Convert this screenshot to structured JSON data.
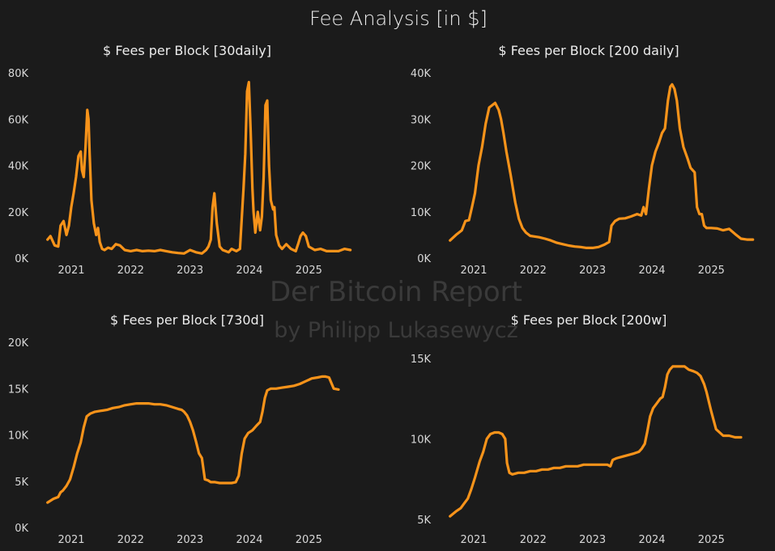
{
  "figure": {
    "title": "Fee Analysis [in $]",
    "watermark_line1": "Der Bitcoin Report",
    "watermark_line2": "by Philipp Lukasewycz",
    "line_color": "#f7931a",
    "background_color": "#1b1b1b"
  },
  "chart_data": [
    {
      "type": "line",
      "title": "$ Fees per Block [30daily]",
      "xlabel": "",
      "ylabel": "",
      "xlim": [
        2020.55,
        2025.8
      ],
      "ylim": [
        0,
        80000
      ],
      "grid": false,
      "yticks": [
        0,
        20000,
        40000,
        60000,
        80000
      ],
      "ytick_labels": [
        "0K",
        "20K",
        "40K",
        "60K",
        "80K"
      ],
      "xticks": [
        2021,
        2022,
        2023,
        2024,
        2025
      ],
      "xtick_labels": [
        "2021",
        "2022",
        "2023",
        "2024",
        "2025"
      ],
      "series": [
        {
          "color": "#f7931a",
          "x": [
            2020.6,
            2020.65,
            2020.72,
            2020.78,
            2020.82,
            2020.87,
            2020.92,
            2020.96,
            2021.0,
            2021.04,
            2021.08,
            2021.12,
            2021.16,
            2021.18,
            2021.21,
            2021.24,
            2021.27,
            2021.29,
            2021.31,
            2021.34,
            2021.38,
            2021.42,
            2021.45,
            2021.48,
            2021.52,
            2021.56,
            2021.62,
            2021.68,
            2021.75,
            2021.82,
            2021.9,
            2022.0,
            2022.1,
            2022.2,
            2022.3,
            2022.4,
            2022.5,
            2022.6,
            2022.7,
            2022.8,
            2022.9,
            2023.0,
            2023.1,
            2023.2,
            2023.27,
            2023.31,
            2023.35,
            2023.38,
            2023.41,
            2023.45,
            2023.5,
            2023.55,
            2023.6,
            2023.65,
            2023.7,
            2023.78,
            2023.84,
            2023.9,
            2023.93,
            2023.96,
            2023.99,
            2024.02,
            2024.05,
            2024.07,
            2024.1,
            2024.14,
            2024.18,
            2024.21,
            2024.24,
            2024.27,
            2024.3,
            2024.33,
            2024.36,
            2024.4,
            2024.42,
            2024.45,
            2024.5,
            2024.55,
            2024.62,
            2024.7,
            2024.78,
            2024.82,
            2024.86,
            2024.9,
            2024.95,
            2025.0,
            2025.1,
            2025.2,
            2025.3,
            2025.4,
            2025.5,
            2025.6,
            2025.7
          ],
          "values": [
            8000,
            9500,
            5500,
            5000,
            14000,
            16000,
            10000,
            14000,
            22000,
            28000,
            35000,
            44000,
            46000,
            38000,
            35000,
            48000,
            64000,
            60000,
            45000,
            25000,
            15000,
            10000,
            13000,
            7000,
            4000,
            3500,
            4500,
            4000,
            6000,
            5500,
            3500,
            3000,
            3500,
            3000,
            3200,
            3000,
            3500,
            3000,
            2500,
            2200,
            2000,
            3500,
            2500,
            2000,
            3500,
            5000,
            8000,
            22000,
            28000,
            15000,
            5000,
            3500,
            3000,
            2500,
            4000,
            3000,
            4000,
            30000,
            45000,
            72000,
            76000,
            55000,
            30000,
            20000,
            11000,
            20000,
            12000,
            18000,
            35000,
            66000,
            68000,
            40000,
            25000,
            21000,
            22000,
            10000,
            5500,
            4000,
            6000,
            4000,
            3000,
            6000,
            9500,
            11000,
            9500,
            5000,
            3500,
            4000,
            3000,
            3000,
            3000,
            4000,
            3500
          ]
        }
      ]
    },
    {
      "type": "line",
      "title": "$ Fees per Block [200 daily]",
      "xlabel": "",
      "ylabel": "",
      "xlim": [
        2020.55,
        2025.8
      ],
      "ylim": [
        0,
        40000
      ],
      "grid": false,
      "yticks": [
        0,
        10000,
        20000,
        30000,
        40000
      ],
      "ytick_labels": [
        "0K",
        "10K",
        "20K",
        "30K",
        "40K"
      ],
      "xticks": [
        2021,
        2022,
        2023,
        2024,
        2025
      ],
      "xtick_labels": [
        "2021",
        "2022",
        "2023",
        "2024",
        "2025"
      ],
      "series": [
        {
          "color": "#f7931a",
          "x": [
            2020.6,
            2020.7,
            2020.8,
            2020.86,
            2020.92,
            2020.97,
            2021.02,
            2021.08,
            2021.14,
            2021.2,
            2021.26,
            2021.31,
            2021.36,
            2021.42,
            2021.46,
            2021.5,
            2021.55,
            2021.62,
            2021.7,
            2021.76,
            2021.82,
            2021.88,
            2021.95,
            2022.0,
            2022.1,
            2022.2,
            2022.3,
            2022.4,
            2022.5,
            2022.6,
            2022.7,
            2022.8,
            2022.9,
            2023.0,
            2023.1,
            2023.2,
            2023.28,
            2023.32,
            2023.38,
            2023.45,
            2023.55,
            2023.65,
            2023.75,
            2023.82,
            2023.86,
            2023.9,
            2023.95,
            2024.0,
            2024.06,
            2024.12,
            2024.17,
            2024.22,
            2024.27,
            2024.31,
            2024.34,
            2024.38,
            2024.42,
            2024.47,
            2024.53,
            2024.6,
            2024.65,
            2024.72,
            2024.76,
            2024.8,
            2024.84,
            2024.88,
            2024.92,
            2025.0,
            2025.1,
            2025.2,
            2025.3,
            2025.4,
            2025.5,
            2025.6,
            2025.7
          ],
          "values": [
            3800,
            5000,
            6000,
            8000,
            8200,
            11000,
            14000,
            20000,
            24000,
            29000,
            32500,
            33000,
            33500,
            32000,
            30000,
            27000,
            23000,
            18000,
            12000,
            8500,
            6500,
            5500,
            4800,
            4700,
            4500,
            4200,
            3800,
            3300,
            3000,
            2700,
            2500,
            2400,
            2200,
            2200,
            2400,
            2900,
            3500,
            7000,
            8000,
            8500,
            8600,
            9000,
            9500,
            9200,
            11000,
            9500,
            15000,
            20000,
            23000,
            25000,
            27000,
            28000,
            34000,
            37000,
            37500,
            36500,
            34000,
            28000,
            24000,
            21500,
            19500,
            18500,
            11000,
            9500,
            9500,
            7000,
            6500,
            6500,
            6400,
            6000,
            6300,
            5200,
            4200,
            4000,
            4000
          ]
        }
      ]
    },
    {
      "type": "line",
      "title": "$ Fees per Block [730d]",
      "xlabel": "",
      "ylabel": "",
      "xlim": [
        2020.55,
        2025.8
      ],
      "ylim": [
        0,
        20000
      ],
      "grid": false,
      "yticks": [
        0,
        5000,
        10000,
        15000,
        20000
      ],
      "ytick_labels": [
        "0K",
        "5K",
        "10K",
        "15K",
        "20K"
      ],
      "xticks": [
        2021,
        2022,
        2023,
        2024,
        2025
      ],
      "xtick_labels": [
        "2021",
        "2022",
        "2023",
        "2024",
        "2025"
      ],
      "series": [
        {
          "color": "#f7931a",
          "x": [
            2020.6,
            2020.7,
            2020.78,
            2020.82,
            2020.86,
            2020.92,
            2020.98,
            2021.04,
            2021.1,
            2021.16,
            2021.21,
            2021.26,
            2021.32,
            2021.4,
            2021.5,
            2021.6,
            2021.7,
            2021.8,
            2021.9,
            2022.0,
            2022.1,
            2022.2,
            2022.3,
            2022.4,
            2022.5,
            2022.6,
            2022.7,
            2022.8,
            2022.86,
            2022.9,
            2022.95,
            2023.0,
            2023.05,
            2023.1,
            2023.15,
            2023.2,
            2023.25,
            2023.3,
            2023.35,
            2023.42,
            2023.5,
            2023.6,
            2023.7,
            2023.77,
            2023.82,
            2023.87,
            2023.92,
            2023.98,
            2024.05,
            2024.12,
            2024.18,
            2024.22,
            2024.26,
            2024.3,
            2024.36,
            2024.45,
            2024.55,
            2024.65,
            2024.75,
            2024.85,
            2024.95,
            2025.05,
            2025.15,
            2025.22,
            2025.28,
            2025.34,
            2025.42,
            2025.5
          ],
          "values": [
            2700,
            3100,
            3300,
            3800,
            4000,
            4500,
            5200,
            6500,
            8000,
            9200,
            10800,
            12000,
            12300,
            12500,
            12600,
            12700,
            12900,
            13000,
            13200,
            13300,
            13400,
            13400,
            13400,
            13300,
            13300,
            13200,
            13000,
            12800,
            12700,
            12500,
            12100,
            11400,
            10500,
            9300,
            8000,
            7500,
            5200,
            5100,
            4900,
            4900,
            4800,
            4800,
            4800,
            4900,
            5600,
            8000,
            9600,
            10200,
            10500,
            11000,
            11400,
            12500,
            14000,
            14800,
            15000,
            15000,
            15100,
            15200,
            15300,
            15500,
            15800,
            16100,
            16200,
            16300,
            16300,
            16200,
            15000,
            14900
          ]
        }
      ]
    },
    {
      "type": "line",
      "title": "$ Fees per Block [200w]",
      "xlabel": "",
      "ylabel": "",
      "xlim": [
        2020.55,
        2025.8
      ],
      "ylim": [
        4500,
        16000
      ],
      "grid": false,
      "yticks": [
        5000,
        10000,
        15000
      ],
      "ytick_labels": [
        "5K",
        "10K",
        "15K"
      ],
      "xticks": [
        2021,
        2022,
        2023,
        2024,
        2025
      ],
      "xtick_labels": [
        "2021",
        "2022",
        "2023",
        "2024",
        "2025"
      ],
      "series": [
        {
          "color": "#f7931a",
          "x": [
            2020.6,
            2020.7,
            2020.78,
            2020.84,
            2020.9,
            2020.96,
            2021.02,
            2021.1,
            2021.16,
            2021.22,
            2021.28,
            2021.35,
            2021.42,
            2021.48,
            2021.53,
            2021.56,
            2021.6,
            2021.65,
            2021.75,
            2021.85,
            2021.95,
            2022.05,
            2022.15,
            2022.25,
            2022.35,
            2022.45,
            2022.55,
            2022.65,
            2022.75,
            2022.85,
            2022.95,
            2023.05,
            2023.15,
            2023.25,
            2023.3,
            2023.34,
            2023.4,
            2023.5,
            2023.6,
            2023.7,
            2023.78,
            2023.83,
            2023.88,
            2023.92,
            2023.97,
            2024.02,
            2024.08,
            2024.14,
            2024.18,
            2024.22,
            2024.26,
            2024.3,
            2024.35,
            2024.45,
            2024.55,
            2024.62,
            2024.7,
            2024.76,
            2024.82,
            2024.88,
            2024.92,
            2024.96,
            2025.0,
            2025.08,
            2025.2,
            2025.3,
            2025.4,
            2025.5
          ],
          "values": [
            5200,
            5500,
            5700,
            6000,
            6300,
            6900,
            7600,
            8600,
            9200,
            10000,
            10300,
            10400,
            10400,
            10300,
            10000,
            8500,
            7900,
            7800,
            7900,
            7900,
            8000,
            8000,
            8100,
            8100,
            8200,
            8200,
            8300,
            8300,
            8300,
            8400,
            8400,
            8400,
            8400,
            8400,
            8300,
            8700,
            8800,
            8900,
            9000,
            9100,
            9200,
            9400,
            9700,
            10400,
            11400,
            11900,
            12200,
            12500,
            12600,
            13200,
            14000,
            14300,
            14500,
            14500,
            14500,
            14300,
            14200,
            14100,
            13900,
            13400,
            12900,
            12300,
            11700,
            10600,
            10200,
            10200,
            10100,
            10100
          ]
        }
      ]
    }
  ]
}
